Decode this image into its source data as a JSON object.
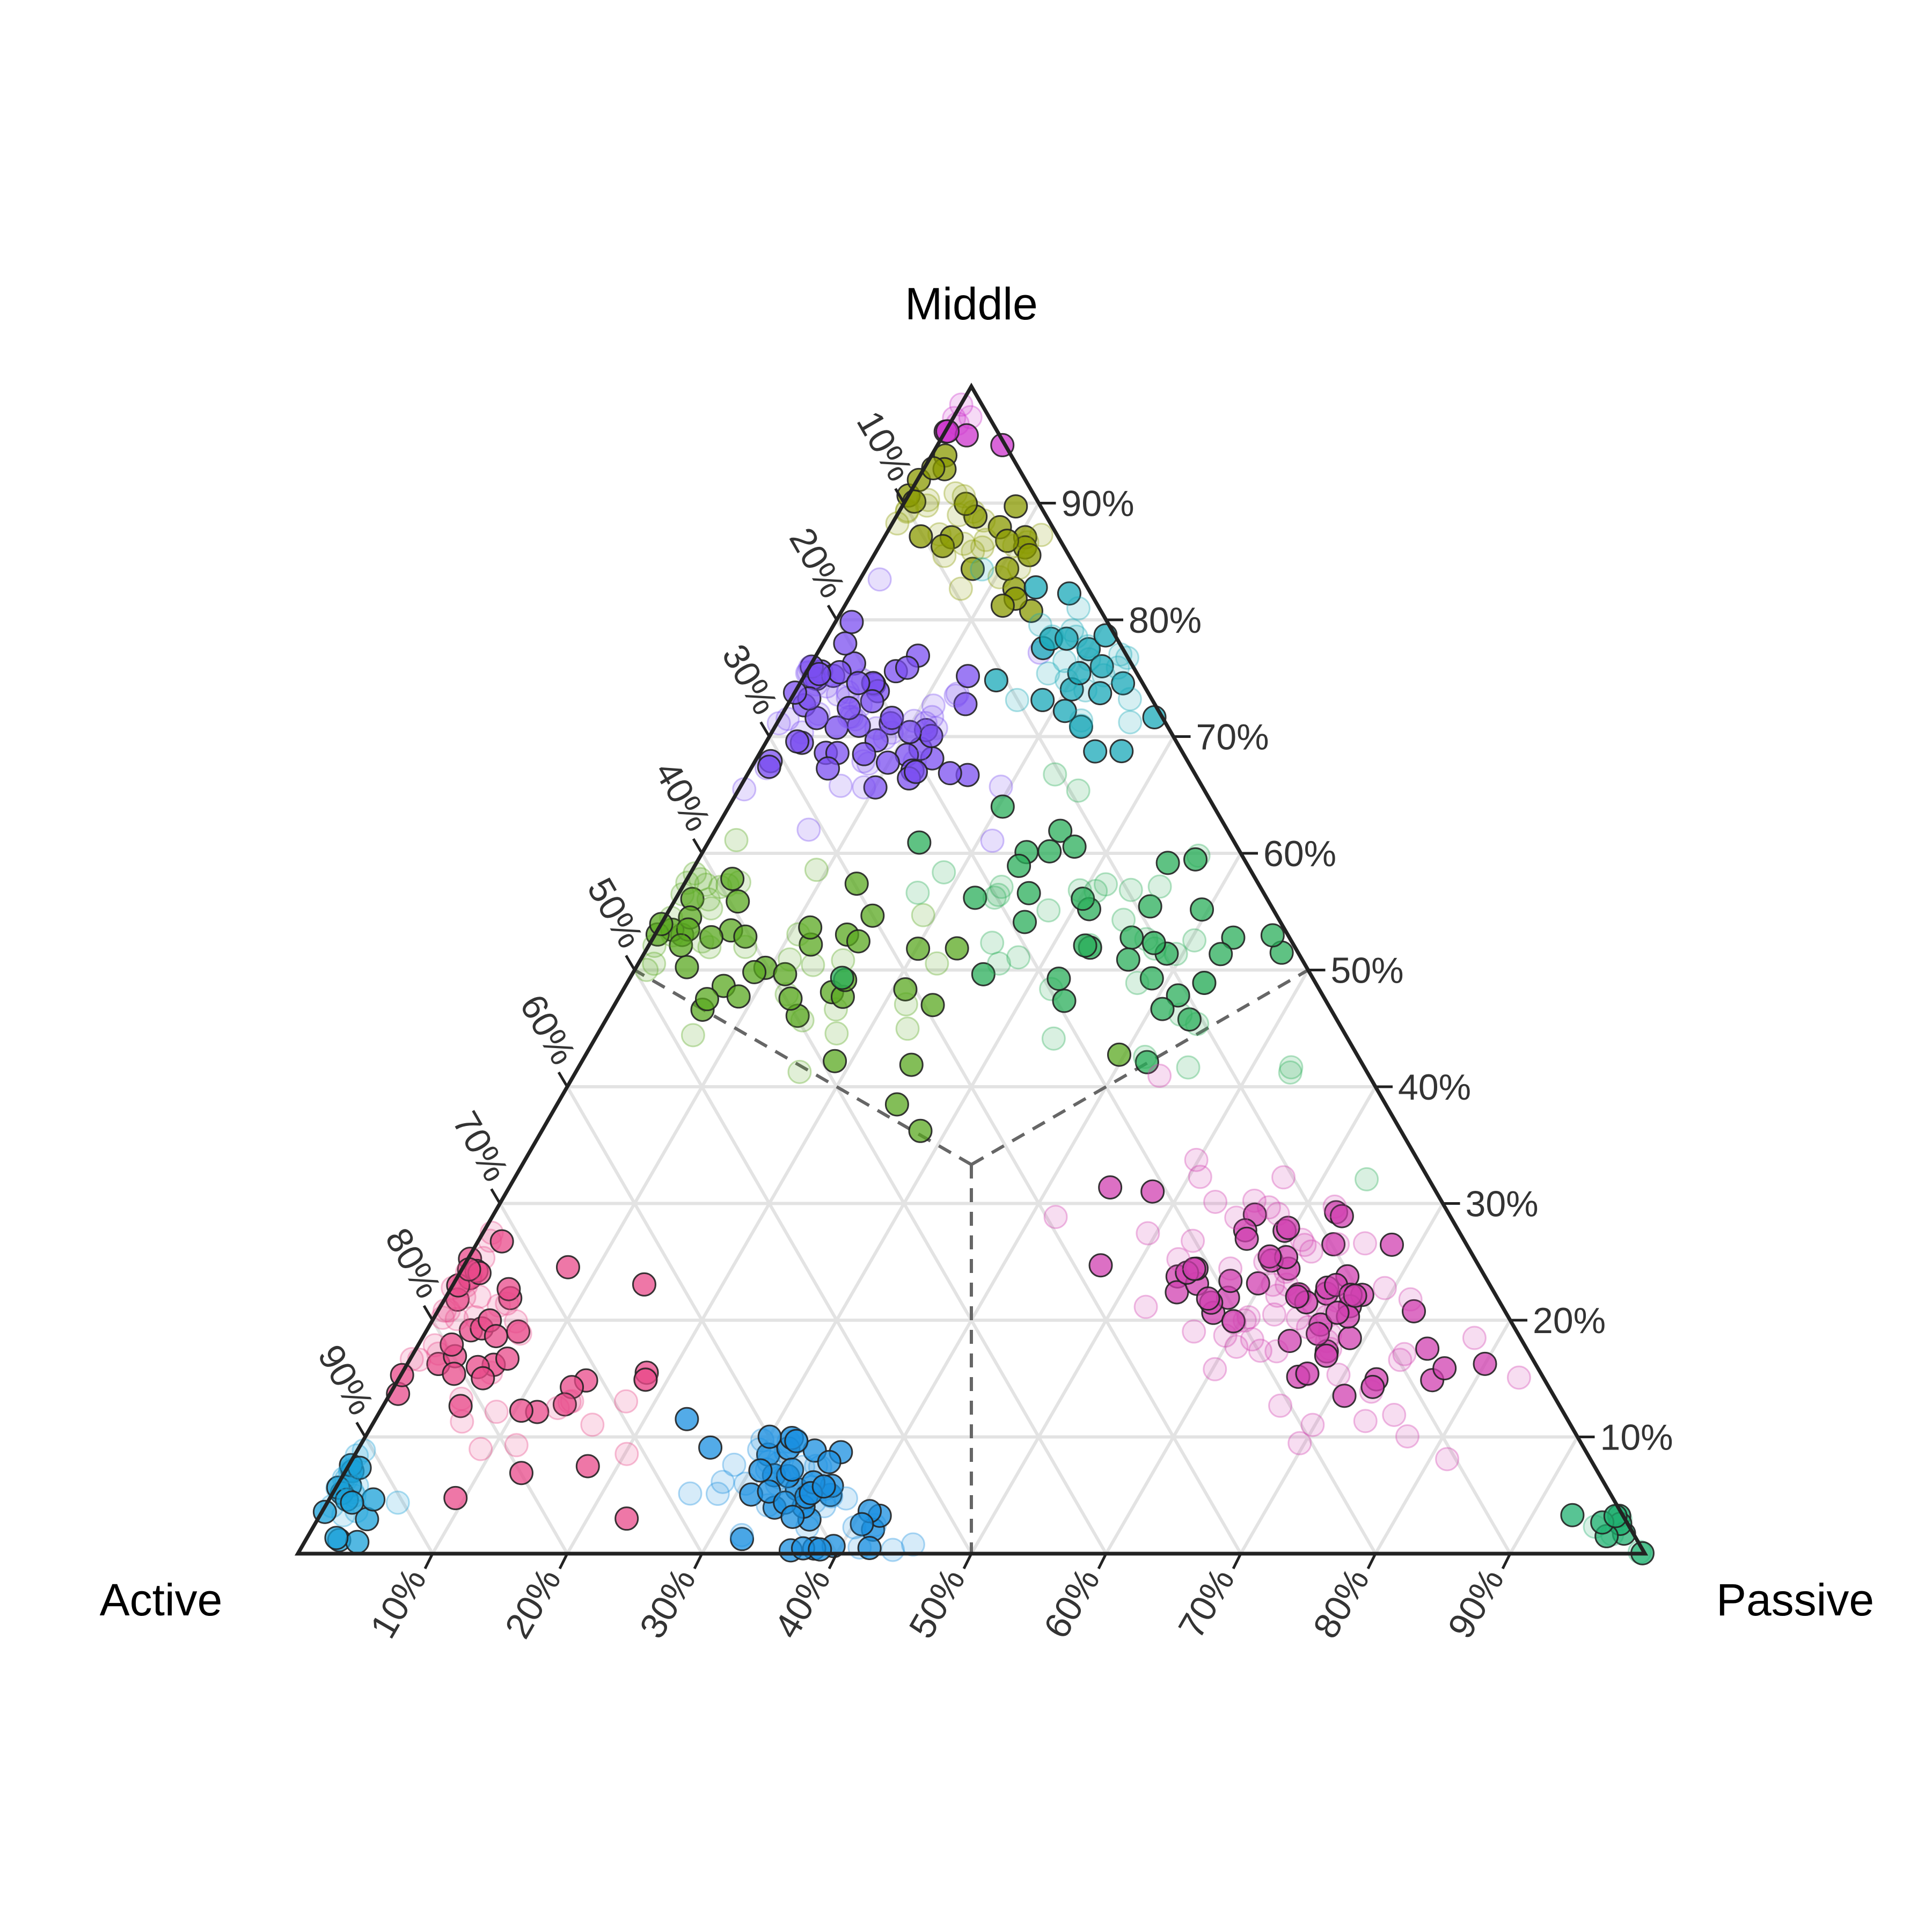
{
  "chart_data": {
    "type": "scatter",
    "subtype": "ternary",
    "corner_labels": {
      "top": "Middle",
      "left": "Active",
      "right": "Passive"
    },
    "axis_ticks": {
      "bottom": [
        "10%",
        "20%",
        "30%",
        "40%",
        "50%",
        "60%",
        "70%",
        "80%",
        "90%"
      ],
      "right": [
        "10%",
        "20%",
        "30%",
        "40%",
        "50%",
        "60%",
        "70%",
        "80%",
        "90%"
      ],
      "left": [
        "10%",
        "20%",
        "30%",
        "40%",
        "50%",
        "60%",
        "70%",
        "80%",
        "90%"
      ]
    },
    "axis_range": [
      0,
      100
    ],
    "grid": true,
    "region_dividers": "dashed lines from the centroid to the midpoint of each side",
    "clusters": [
      {
        "color": "#cc33cc",
        "center": {
          "active": 2,
          "middle": 97,
          "passive": 1
        },
        "spread": 1.5,
        "count": 8
      },
      {
        "color": "#8a9a00",
        "center": {
          "active": 6,
          "middle": 88,
          "passive": 6
        },
        "spread": 3,
        "count": 45
      },
      {
        "color": "#7b4ff0",
        "center": {
          "active": 22,
          "middle": 72,
          "passive": 6
        },
        "spread": 4.5,
        "count": 90
      },
      {
        "color": "#18a8b8",
        "center": {
          "active": 4,
          "middle": 76,
          "passive": 20
        },
        "spread": 3,
        "count": 40
      },
      {
        "color": "#5aa820",
        "center": {
          "active": 38,
          "middle": 52,
          "passive": 10
        },
        "spread": 6,
        "count": 75
      },
      {
        "color": "#2aae5a",
        "center": {
          "active": 12,
          "middle": 52,
          "passive": 36
        },
        "spread": 7,
        "count": 70
      },
      {
        "color": "#e84a8a",
        "center": {
          "active": 77,
          "middle": 18,
          "passive": 5
        },
        "spread": 5,
        "count": 75
      },
      {
        "color": "#d040b0",
        "center": {
          "active": 14,
          "middle": 22,
          "passive": 64
        },
        "spread": 6,
        "count": 120
      },
      {
        "color": "#1a8fe0",
        "center": {
          "active": 60,
          "middle": 6,
          "passive": 34
        },
        "spread": 3,
        "count": 75
      },
      {
        "color": "#1aa0d8",
        "center": {
          "active": 94,
          "middle": 5,
          "passive": 1
        },
        "spread": 2,
        "count": 28
      },
      {
        "color": "#20b070",
        "center": {
          "active": 1,
          "middle": 2,
          "passive": 97
        },
        "spread": 1.5,
        "count": 12
      }
    ]
  }
}
